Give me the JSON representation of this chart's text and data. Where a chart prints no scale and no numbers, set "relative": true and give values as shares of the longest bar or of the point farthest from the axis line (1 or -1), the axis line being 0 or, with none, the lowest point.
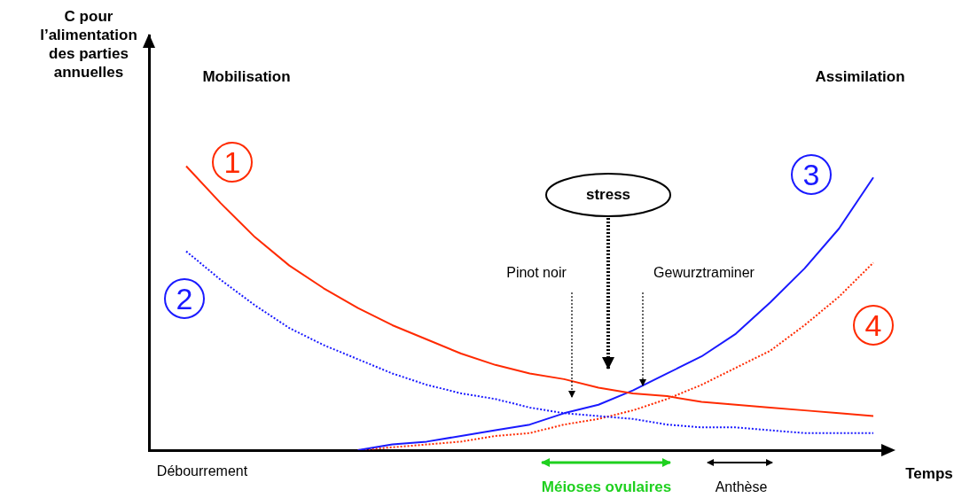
{
  "chart_data": {
    "type": "line",
    "relative": true,
    "grid": false,
    "legend": false,
    "marker": "none",
    "xlabel": "Temps",
    "annotations": [
      "C pour l’alimentation des parties annuelles",
      "Mobilisation",
      "Assimilation",
      "stress",
      "Pinot noir",
      "Gewurztraminer",
      "Débourrement",
      "Méioses ovulaires",
      "Anthèse"
    ],
    "categories": [
      null,
      null,
      null,
      null,
      null,
      null,
      null,
      null,
      null,
      null,
      null,
      null,
      null,
      null,
      null,
      null,
      null,
      null,
      null,
      null,
      null
    ],
    "series": [
      {
        "name": "1",
        "color": "#ff2a00",
        "line_style": "solid",
        "values": [
          1.0,
          0.87,
          0.75,
          0.65,
          0.57,
          0.5,
          0.44,
          0.39,
          0.34,
          0.3,
          0.27,
          0.25,
          0.22,
          0.2,
          0.19,
          0.17,
          0.16,
          0.15,
          0.14,
          0.13,
          0.12
        ]
      },
      {
        "name": "2",
        "color": "#1a1aff",
        "line_style": "dotted",
        "values": [
          0.7,
          0.6,
          0.51,
          0.43,
          0.37,
          0.32,
          0.27,
          0.23,
          0.2,
          0.18,
          0.15,
          0.13,
          0.12,
          0.11,
          0.09,
          0.08,
          0.08,
          0.07,
          0.06,
          0.06,
          0.06
        ]
      },
      {
        "name": "3",
        "color": "#1a1aff",
        "line_style": "solid",
        "values": [
          null,
          null,
          null,
          null,
          null,
          0.0,
          0.02,
          0.03,
          0.05,
          0.07,
          0.09,
          0.13,
          0.16,
          0.21,
          0.27,
          0.33,
          0.41,
          0.52,
          0.64,
          0.78,
          0.96
        ]
      },
      {
        "name": "4",
        "color": "#ff2a00",
        "line_style": "dotted",
        "values": [
          null,
          null,
          null,
          null,
          null,
          0.0,
          0.01,
          0.02,
          0.03,
          0.05,
          0.06,
          0.09,
          0.11,
          0.14,
          0.18,
          0.23,
          0.29,
          0.35,
          0.44,
          0.54,
          0.66
        ]
      }
    ]
  }
}
